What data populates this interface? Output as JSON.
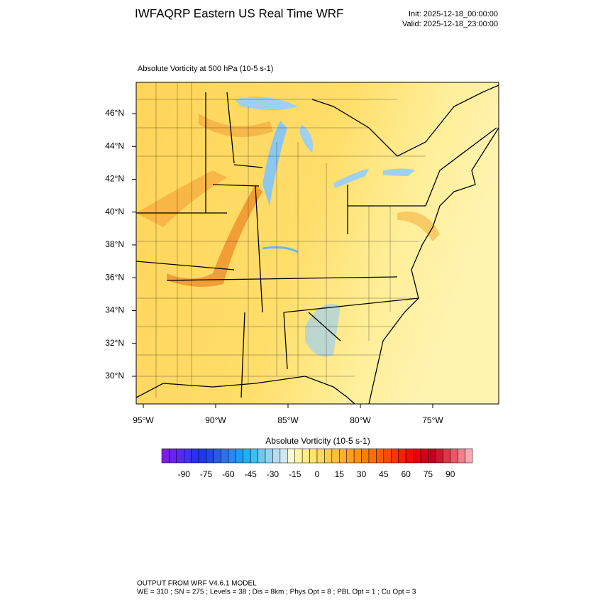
{
  "header": {
    "title": "IWFAQRP Eastern US Real Time WRF",
    "init": "Init: 2025-12-18_00:00:00",
    "valid": "Valid: 2025-12-18_23:00:00"
  },
  "map": {
    "subtitle": "Absolute Vorticity at 500 hPa   (10-5 s-1)",
    "lat_labels": [
      "46°N",
      "44°N",
      "42°N",
      "40°N",
      "38°N",
      "36°N",
      "34°N",
      "32°N",
      "30°N"
    ],
    "lon_labels": [
      "95°W",
      "90°W",
      "85°W",
      "80°W",
      "75°W"
    ]
  },
  "colorbar": {
    "title": "Absolute Vorticity  (10-5 s-1)",
    "lim": [
      -105,
      105
    ],
    "ticks": [
      -90,
      -75,
      -60,
      -45,
      -30,
      -15,
      0,
      15,
      30,
      45,
      60,
      75,
      90
    ],
    "colors": [
      "#7a1fe0",
      "#6a22ee",
      "#5a28f5",
      "#4430f5",
      "#2a2ff0",
      "#1c3ae8",
      "#2248e0",
      "#2c5be0",
      "#3470e5",
      "#2c86ee",
      "#1f9cf2",
      "#20b0f2",
      "#40bdf0",
      "#70c8ee",
      "#95d2ee",
      "#b5ddef",
      "#d0e8f2",
      "#fffad0",
      "#fff3a8",
      "#ffec8a",
      "#ffe270",
      "#ffd860",
      "#ffcc50",
      "#ffbe40",
      "#ffb030",
      "#ffa020",
      "#ff9010",
      "#ff8000",
      "#ff7000",
      "#ff5e00",
      "#ff4a00",
      "#ff3400",
      "#ff1e00",
      "#f50a00",
      "#e80010",
      "#d40018",
      "#c00020",
      "#c81830",
      "#d83848",
      "#e85a68",
      "#f28088",
      "#fca8b0"
    ]
  },
  "footer": {
    "line1": "OUTPUT FROM WRF V4.6.1 MODEL",
    "line2": "WE = 310 ; SN = 275 ; Levels = 38 ; Dis = 8km ; Phys Opt = 8 ; PBL Opt = 1 ; Cu Opt = 3"
  }
}
